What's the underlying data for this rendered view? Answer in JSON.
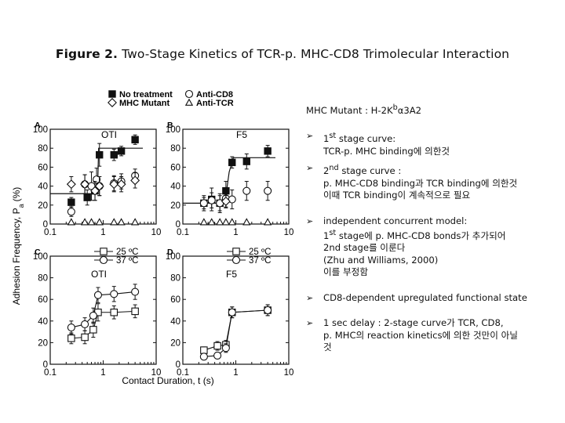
{
  "title": {
    "lead": "Figure 2.",
    "rest": "Two-Stage Kinetics of TCR-p. MHC-CD8 Trimolecular Interaction"
  },
  "legend_top": {
    "no_treatment": "No treatment",
    "anti_cd8": "Anti-CD8",
    "mhc_mutant": "MHC Mutant",
    "anti_tcr": "Anti-TCR"
  },
  "y_axis_label": "Adhesion Frequency, P",
  "y_axis_sub": "a",
  "y_axis_unit": "(%)",
  "x_axis_label": "Contact Duration, t (s)",
  "panels": [
    {
      "letter": "A",
      "name": "OTI"
    },
    {
      "letter": "B",
      "name": "F5"
    },
    {
      "letter": "C",
      "name": "OTI"
    },
    {
      "letter": "D",
      "name": "F5"
    }
  ],
  "legend_temp": {
    "t25": "25 ºC",
    "t37": "37 ºC"
  },
  "x_ticks": [
    "0.1",
    "1",
    "10"
  ],
  "y_ticks": [
    "0",
    "20",
    "40",
    "60",
    "80",
    "100"
  ],
  "notes": {
    "sub_pre": "MHC Mutant : H-2K",
    "sub_sup": "b",
    "sub_post": "α3A2",
    "b1_l1_pre": "1",
    "b1_l1_sup": "st",
    "b1_l1_post": " stage curve:",
    "b1_l2": "TCR-p. MHC binding에 의한것",
    "b2_l1_pre": "2",
    "b2_l1_sup": "nd",
    "b2_l1_post": " stage curve :",
    "b2_l2": "p. MHC-CD8 binding과 TCR binding에 의한것",
    "b2_l3": "이때 TCR binding이 계속적으로 필요",
    "b3_l1": "independent concurrent model:",
    "b3_l2_pre": "1",
    "b3_l2_sup": "st",
    "b3_l2_post": " stage에 p. MHC-CD8 bonds가 추가되어",
    "b3_l3": "2nd stage를 이룬다",
    "b3_l4": "(Zhu and Williams, 2000)",
    "b3_l5": "이를 부정함",
    "b4_l1": "CD8-dependent upregulated functional state",
    "b5_l1": "1 sec delay : 2-stage curve가 TCR, CD8,",
    "b5_l2": "p. MHC의 reaction kinetics에 의한 것만이 아닐",
    "b5_l3": "것"
  },
  "chart_data": [
    {
      "type": "scatter",
      "panel": "A",
      "title": "OTI",
      "xscale": "log",
      "xlim": [
        0.1,
        10
      ],
      "ylim": [
        0,
        100
      ],
      "xlabel": "Contact Duration, t (s)",
      "ylabel": "Adhesion Frequency, Pa (%)",
      "series": [
        {
          "name": "No treatment",
          "marker": "filled-square",
          "x": [
            0.25,
            0.5,
            0.7,
            0.85,
            1.6,
            2.2,
            4.0
          ],
          "y": [
            23,
            28,
            35,
            73,
            73,
            77,
            89
          ],
          "err": [
            5,
            8,
            10,
            12,
            6,
            5,
            5
          ],
          "fit": [
            [
              0.1,
              32
            ],
            [
              0.78,
              32
            ],
            [
              0.82,
              80
            ],
            [
              5.6,
              80
            ]
          ]
        },
        {
          "name": "Anti-CD8",
          "marker": "open-circle",
          "x": [
            0.25,
            0.45,
            0.6,
            0.75,
            0.85,
            1.6,
            2.2,
            4.0
          ],
          "y": [
            13,
            42,
            40,
            47,
            40,
            43,
            45,
            51
          ],
          "err": [
            5,
            10,
            15,
            12,
            10,
            8,
            8,
            7
          ]
        },
        {
          "name": "MHC Mutant",
          "marker": "open-diamond",
          "x": [
            0.25,
            0.45,
            0.7,
            0.85,
            1.6,
            2.2,
            4.0
          ],
          "y": [
            42,
            42,
            35,
            40,
            42,
            42,
            46
          ],
          "err": [
            8,
            10,
            10,
            10,
            8,
            8,
            8
          ]
        },
        {
          "name": "Anti-TCR",
          "marker": "open-triangle",
          "x": [
            0.25,
            0.45,
            0.6,
            0.85,
            1.6,
            2.2,
            4.0
          ],
          "y": [
            2,
            2,
            2,
            2,
            2,
            2,
            2
          ],
          "err": [
            0,
            0,
            0,
            0,
            0,
            0,
            0
          ]
        }
      ]
    },
    {
      "type": "scatter",
      "panel": "B",
      "title": "F5",
      "xscale": "log",
      "xlim": [
        0.1,
        10
      ],
      "ylim": [
        0,
        100
      ],
      "series": [
        {
          "name": "No treatment",
          "marker": "filled-square",
          "x": [
            0.25,
            0.35,
            0.5,
            0.65,
            0.85,
            1.6,
            4.0
          ],
          "y": [
            22,
            26,
            22,
            35,
            65,
            66,
            77
          ],
          "err": [
            8,
            12,
            10,
            10,
            6,
            8,
            6
          ],
          "fit": [
            [
              0.1,
              22
            ],
            [
              0.55,
              22
            ],
            [
              0.65,
              30
            ],
            [
              0.75,
              55
            ],
            [
              0.9,
              70
            ],
            [
              5.6,
              70
            ]
          ]
        },
        {
          "name": "Anti-CD8",
          "marker": "open-circle",
          "x": [
            0.25,
            0.35,
            0.5,
            0.65,
            0.85,
            1.6,
            4.0
          ],
          "y": [
            22,
            25,
            22,
            27,
            26,
            35,
            35
          ],
          "err": [
            6,
            8,
            8,
            10,
            10,
            10,
            10
          ]
        },
        {
          "name": "MHC Mutant",
          "marker": "open-diamond",
          "x": [
            0.65
          ],
          "y": [
            24
          ],
          "err": [
            6
          ]
        },
        {
          "name": "Anti-TCR",
          "marker": "open-triangle",
          "x": [
            0.25,
            0.35,
            0.5,
            0.65,
            0.85,
            1.6,
            4.0
          ],
          "y": [
            2,
            2,
            2,
            2,
            2,
            2,
            2
          ],
          "err": [
            0,
            0,
            0,
            0,
            0,
            0,
            0
          ]
        }
      ]
    },
    {
      "type": "line",
      "panel": "C",
      "title": "OTI",
      "xscale": "log",
      "xlim": [
        0.1,
        10
      ],
      "ylim": [
        0,
        100
      ],
      "series": [
        {
          "name": "25 ºC",
          "marker": "open-square",
          "x": [
            0.25,
            0.45,
            0.65,
            0.8,
            1.6,
            4.0
          ],
          "y": [
            24,
            25,
            32,
            48,
            48,
            49
          ],
          "err": [
            5,
            6,
            7,
            8,
            6,
            6
          ]
        },
        {
          "name": "37 ºC",
          "marker": "open-circle",
          "x": [
            0.25,
            0.45,
            0.65,
            0.8,
            1.6,
            4.0
          ],
          "y": [
            34,
            37,
            45,
            64,
            65,
            67
          ],
          "err": [
            6,
            6,
            7,
            7,
            7,
            7
          ]
        }
      ]
    },
    {
      "type": "line",
      "panel": "D",
      "title": "F5",
      "xscale": "log",
      "xlim": [
        0.1,
        10
      ],
      "ylim": [
        0,
        100
      ],
      "series": [
        {
          "name": "25 ºC",
          "marker": "open-square",
          "x": [
            0.25,
            0.45,
            0.65,
            0.85,
            4.0
          ],
          "y": [
            13,
            17,
            18,
            48,
            50
          ],
          "err": [
            3,
            4,
            4,
            5,
            5
          ]
        },
        {
          "name": "37 ºC",
          "marker": "open-circle",
          "x": [
            0.25,
            0.45,
            0.65,
            0.85,
            4.0
          ],
          "y": [
            7,
            8,
            15,
            48,
            50
          ],
          "err": [
            3,
            3,
            4,
            5,
            5
          ]
        }
      ]
    }
  ]
}
